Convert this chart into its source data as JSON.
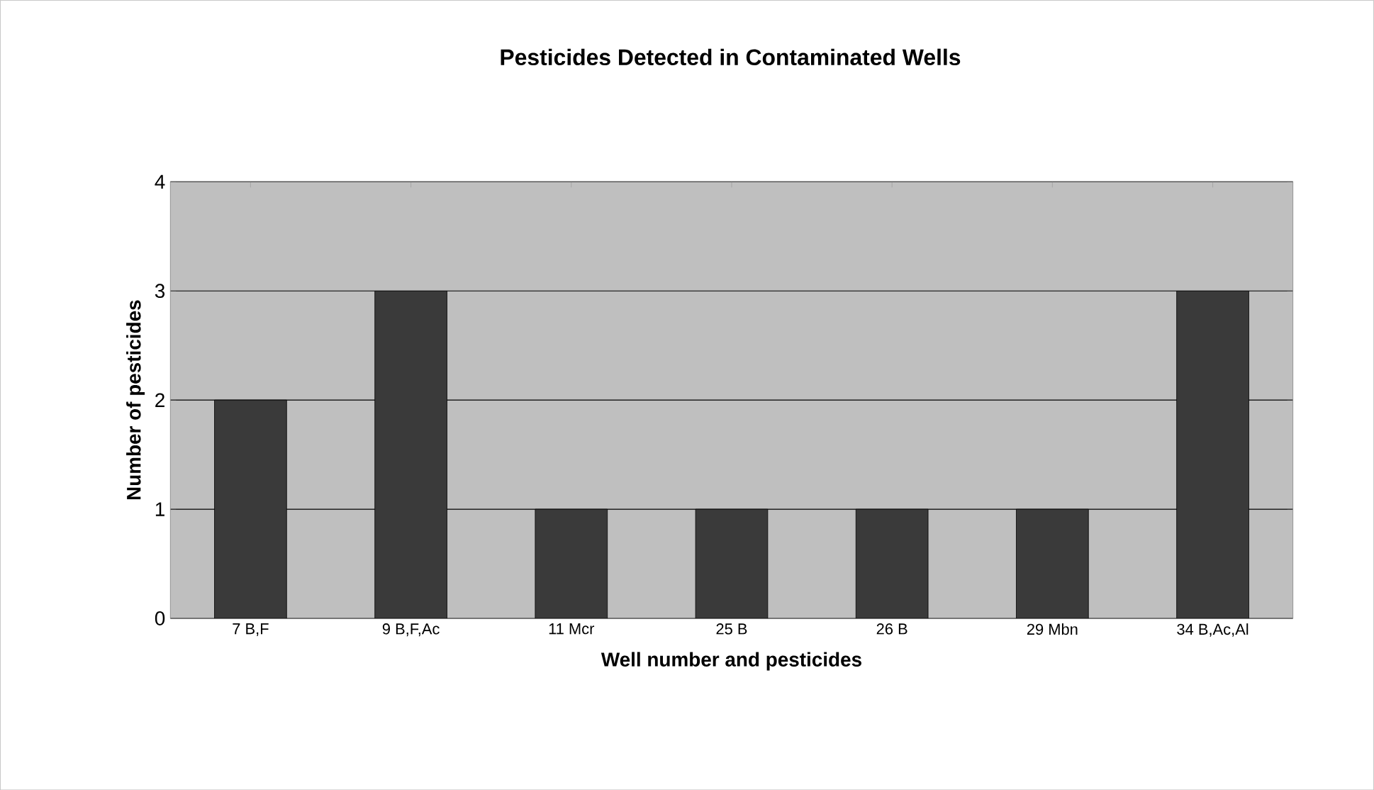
{
  "chart_data": {
    "type": "bar",
    "title": "Pesticides Detected in Contaminated Wells",
    "xlabel": "Well number and pesticides",
    "ylabel": "Number of pesticides",
    "categories": [
      "7 B,F",
      "9 B,F,Ac",
      "11 Mcr",
      "25 B",
      "26 B",
      "29 Mbn",
      "34 B,Ac,Al"
    ],
    "values": [
      2,
      3,
      1,
      1,
      1,
      1,
      3
    ],
    "color": "#3a3a3a",
    "ylim": [
      0,
      4
    ],
    "yticks": [
      0,
      1,
      2,
      3,
      4
    ],
    "grid": "y"
  }
}
